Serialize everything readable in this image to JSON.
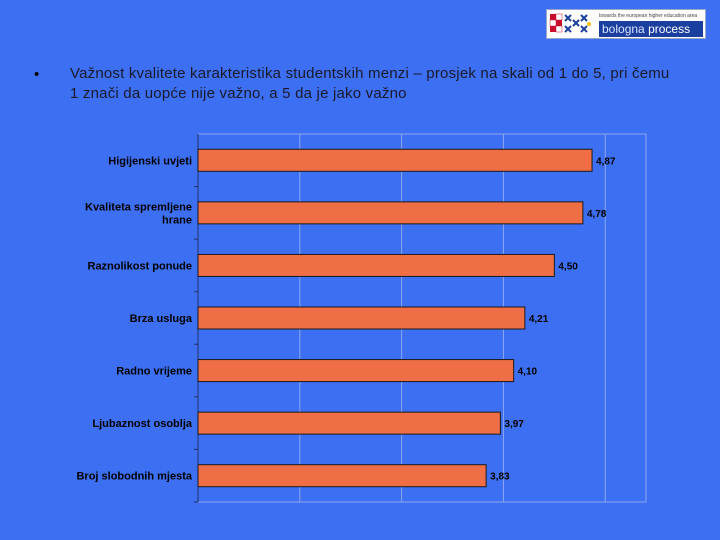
{
  "logo": {
    "tagline": "towards the european higher education area",
    "wordmark_part1": "bologna",
    "wordmark_part2": "process"
  },
  "bullet": {
    "symbol": "•",
    "text": "Važnost kvalitete karakteristika studentskih menzi – prosjek na skali od 1 do 5, pri čemu 1 znači da uopće nije važno, a 5 da je jako važno"
  },
  "colors": {
    "background": "#3d6ff2",
    "bar_fill": "#ef6e45",
    "bar_stroke": "#1a1a1a",
    "grid": "#8aa6ee"
  },
  "chart_data": {
    "type": "bar",
    "orientation": "horizontal",
    "categories": [
      "Higijenski uvjeti",
      "Kvaliteta spremljene hrane",
      "Raznolikost ponude",
      "Brza usluga",
      "Radno vrijeme",
      "Ljubaznost osoblja",
      "Broj slobodnih mjesta"
    ],
    "category_lines": [
      [
        "Higijenski uvjeti"
      ],
      [
        "Kvaliteta spremljene",
        "hrane"
      ],
      [
        "Raznolikost ponude"
      ],
      [
        "Brza usluga"
      ],
      [
        "Radno vrijeme"
      ],
      [
        "Ljubaznost osoblja"
      ],
      [
        "Broj slobodnih mjesta"
      ]
    ],
    "values": [
      4.87,
      4.78,
      4.5,
      4.21,
      4.1,
      3.97,
      3.83
    ],
    "value_labels": [
      "4,87",
      "4,78",
      "4,50",
      "4,21",
      "4,10",
      "3,97",
      "3,83"
    ],
    "xlim": [
      1,
      5.4
    ],
    "grid": true,
    "legend": false
  }
}
